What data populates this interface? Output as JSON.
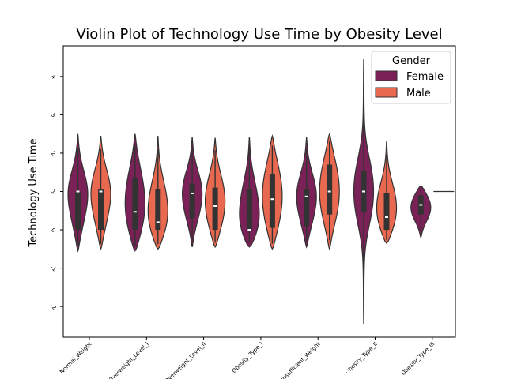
{
  "chart_data": {
    "type": "violin",
    "title": "Violin Plot of Technology Use Time by Obesity Level",
    "xlabel": "",
    "ylabel": "Technology Use Time",
    "ylim": [
      -2.8,
      4.8
    ],
    "yticks": [
      -2,
      -1,
      0,
      1,
      2,
      3,
      4
    ],
    "categories": [
      "Normal_Weight",
      "Overweight_Level_I",
      "Overweight_Level_II",
      "Obesity_Type_I",
      "Insufficient_Weight",
      "Obesity_Type_II",
      "Obesity_Type_III"
    ],
    "legend": {
      "title": "Gender",
      "placement": "top-right"
    },
    "series": [
      {
        "name": "Female",
        "color": "#7a2157",
        "stats": [
          {
            "min": -0.55,
            "max": 2.5,
            "q1": 0.0,
            "median": 1.0,
            "q3": 1.0
          },
          {
            "min": -0.55,
            "max": 2.5,
            "q1": 0.0,
            "median": 0.47,
            "q3": 1.35
          },
          {
            "min": -0.45,
            "max": 2.42,
            "q1": 0.3,
            "median": 0.95,
            "q3": 1.2
          },
          {
            "min": -0.45,
            "max": 2.42,
            "q1": 0.0,
            "median": 0.0,
            "q3": 1.05
          },
          {
            "min": -0.45,
            "max": 2.42,
            "q1": 0.1,
            "median": 0.87,
            "q3": 1.05
          },
          {
            "min": -2.45,
            "max": 4.45,
            "q1": 0.45,
            "median": 1.0,
            "q3": 1.55
          },
          {
            "min": -0.2,
            "max": 1.15,
            "q1": 0.4,
            "median": 0.65,
            "q3": 0.9
          }
        ]
      },
      {
        "name": "Male",
        "color": "#e8694f",
        "stats": [
          {
            "min": -0.5,
            "max": 2.45,
            "q1": 0.0,
            "median": 1.0,
            "q3": 1.05
          },
          {
            "min": -0.5,
            "max": 2.45,
            "q1": 0.0,
            "median": 0.2,
            "q3": 1.05
          },
          {
            "min": -0.45,
            "max": 2.4,
            "q1": 0.0,
            "median": 0.62,
            "q3": 1.1
          },
          {
            "min": -0.5,
            "max": 2.45,
            "q1": 0.05,
            "median": 0.8,
            "q3": 1.45
          },
          {
            "min": -0.5,
            "max": 2.5,
            "q1": 0.4,
            "median": 1.0,
            "q3": 1.7
          },
          {
            "min": -0.35,
            "max": 2.32,
            "q1": 0.0,
            "median": 0.33,
            "q3": 0.95
          },
          {
            "min": 1.0,
            "max": 1.0,
            "q1": 1.0,
            "median": 1.0,
            "q3": 1.0
          }
        ]
      }
    ]
  }
}
